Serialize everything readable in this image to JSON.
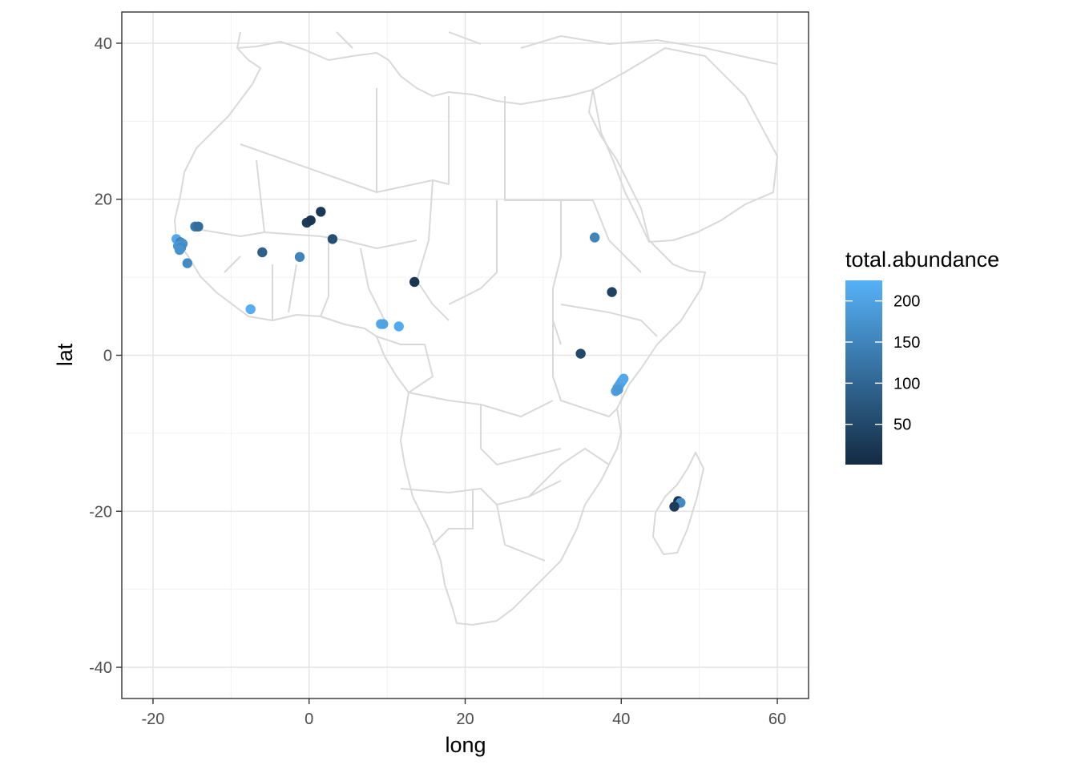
{
  "chart_data": {
    "type": "scatter",
    "subtype": "map-point",
    "title": "",
    "xlabel": "long",
    "ylabel": "lat",
    "xlim": [
      -24,
      64
    ],
    "ylim": [
      -44,
      44
    ],
    "x_ticks": [
      -20,
      0,
      20,
      40,
      60
    ],
    "y_ticks": [
      40,
      20,
      0,
      -20,
      -40
    ],
    "x_tick_labels": [
      "-20",
      "0",
      "20",
      "40",
      "60"
    ],
    "y_tick_labels": [
      "40",
      "20",
      "0",
      "-20",
      "-40"
    ],
    "grid": true,
    "basemap": "Africa country borders",
    "basemap_color": "#d9d9d9",
    "color_scale": {
      "variable": "total.abundance",
      "low_color": "#132b43",
      "high_color": "#56b1f7",
      "range": [
        1,
        225
      ],
      "breaks": [
        200,
        150,
        100,
        50
      ],
      "break_labels": [
        "200",
        "150",
        "100",
        "50"
      ]
    },
    "legend_position": "right",
    "points": [
      {
        "long": -17.0,
        "lat": 14.9,
        "total_abundance": 210
      },
      {
        "long": -16.5,
        "lat": 14.5,
        "total_abundance": 150
      },
      {
        "long": -16.2,
        "lat": 14.3,
        "total_abundance": 170
      },
      {
        "long": -16.8,
        "lat": 14.0,
        "total_abundance": 180
      },
      {
        "long": -16.4,
        "lat": 13.8,
        "total_abundance": 160
      },
      {
        "long": -16.6,
        "lat": 13.5,
        "total_abundance": 175
      },
      {
        "long": -14.6,
        "lat": 16.5,
        "total_abundance": 130
      },
      {
        "long": -14.2,
        "lat": 16.5,
        "total_abundance": 110
      },
      {
        "long": -15.6,
        "lat": 11.8,
        "total_abundance": 160
      },
      {
        "long": -7.5,
        "lat": 5.9,
        "total_abundance": 220
      },
      {
        "long": -6.0,
        "lat": 13.2,
        "total_abundance": 90
      },
      {
        "long": -1.2,
        "lat": 12.6,
        "total_abundance": 150
      },
      {
        "long": -0.3,
        "lat": 17.0,
        "total_abundance": 30
      },
      {
        "long": 0.2,
        "lat": 17.3,
        "total_abundance": 20
      },
      {
        "long": 1.5,
        "lat": 18.4,
        "total_abundance": 25
      },
      {
        "long": 3.0,
        "lat": 14.9,
        "total_abundance": 60
      },
      {
        "long": 9.2,
        "lat": 4.0,
        "total_abundance": 210
      },
      {
        "long": 9.5,
        "lat": 4.0,
        "total_abundance": 200
      },
      {
        "long": 11.5,
        "lat": 3.7,
        "total_abundance": 215
      },
      {
        "long": 13.5,
        "lat": 9.4,
        "total_abundance": 20
      },
      {
        "long": 36.6,
        "lat": 15.1,
        "total_abundance": 150
      },
      {
        "long": 38.8,
        "lat": 8.1,
        "total_abundance": 40
      },
      {
        "long": 34.8,
        "lat": 0.2,
        "total_abundance": 50
      },
      {
        "long": 39.3,
        "lat": -4.6,
        "total_abundance": 195
      },
      {
        "long": 39.5,
        "lat": -4.2,
        "total_abundance": 190
      },
      {
        "long": 39.7,
        "lat": -3.9,
        "total_abundance": 200
      },
      {
        "long": 39.9,
        "lat": -3.6,
        "total_abundance": 205
      },
      {
        "long": 40.1,
        "lat": -3.3,
        "total_abundance": 200
      },
      {
        "long": 40.3,
        "lat": -3.0,
        "total_abundance": 210
      },
      {
        "long": 39.6,
        "lat": -4.4,
        "total_abundance": 185
      },
      {
        "long": 47.3,
        "lat": -18.7,
        "total_abundance": 15
      },
      {
        "long": 47.6,
        "lat": -18.9,
        "total_abundance": 160
      },
      {
        "long": 46.8,
        "lat": -19.4,
        "total_abundance": 30
      }
    ]
  }
}
